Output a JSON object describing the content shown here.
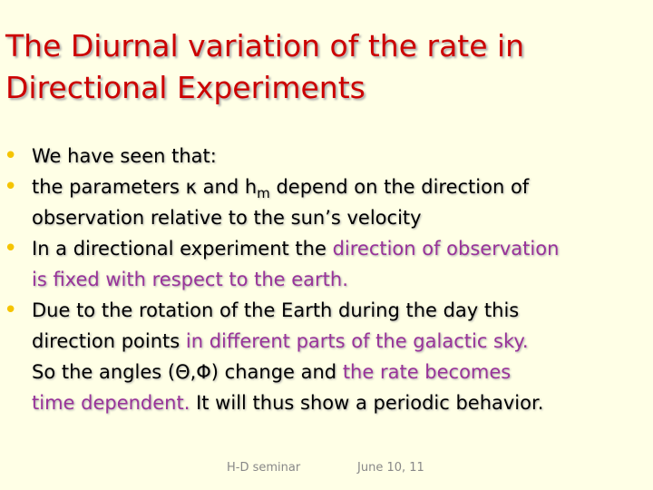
{
  "title": {
    "lines": [
      "The Diurnal variation of the rate in",
      "Directional Experiments"
    ]
  },
  "bullets": [
    {
      "lines": [
        [
          {
            "text": "We have seen that:"
          }
        ]
      ]
    },
    {
      "lines": [
        [
          {
            "text": " the parameters κ and h"
          },
          {
            "text": "m",
            "sub": true
          },
          {
            "text": " depend on the direction of"
          }
        ],
        [
          {
            "text": "observation relative to the sun’s velocity"
          }
        ]
      ]
    },
    {
      "lines": [
        [
          {
            "text": "In a directional experiment the "
          },
          {
            "text": "direction of observation",
            "color": "#993399"
          }
        ],
        [
          {
            "text": "is fixed with respect to the earth.",
            "color": "#993399"
          }
        ]
      ]
    },
    {
      "lines": [
        [
          {
            "text": "Due to the rotation of the Earth during the day this"
          }
        ],
        [
          {
            "text": "direction points "
          },
          {
            "text": "in different parts of the galactic sky.",
            "color": "#993399"
          }
        ],
        [
          {
            "text": "So the angles (Θ,Φ) change and "
          },
          {
            "text": "the rate becomes",
            "color": "#993399"
          }
        ],
        [
          {
            "text": "time dependent.",
            "color": "#993399"
          },
          {
            "text": " It will thus show a periodic behavior."
          }
        ]
      ]
    }
  ],
  "footer": {
    "left": "H-D seminar",
    "right": "June 10, 11"
  }
}
